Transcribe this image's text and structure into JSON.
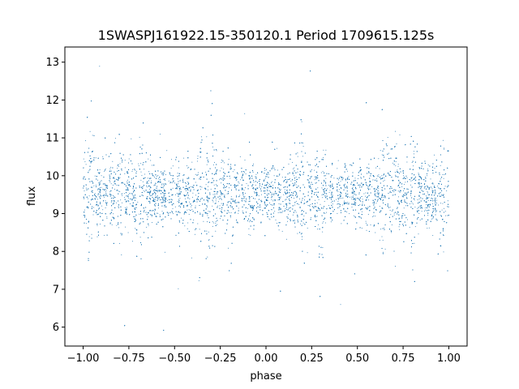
{
  "chart_data": {
    "type": "scatter",
    "title": "1SWASPJ161922.15-350120.1 Period 1709615.125s",
    "xlabel": "phase",
    "ylabel": "flux",
    "xlim": [
      -1.1,
      1.1
    ],
    "ylim": [
      5.5,
      13.4
    ],
    "xticks": [
      -1.0,
      -0.75,
      -0.5,
      -0.25,
      0.0,
      0.25,
      0.5,
      0.75,
      1.0
    ],
    "xtick_labels": [
      "−1.00",
      "−0.75",
      "−0.50",
      "−0.25",
      "0.00",
      "0.25",
      "0.50",
      "0.75",
      "1.00"
    ],
    "yticks": [
      6,
      7,
      8,
      9,
      10,
      11,
      12,
      13
    ],
    "ytick_labels": [
      "6",
      "7",
      "8",
      "9",
      "10",
      "11",
      "12",
      "13"
    ],
    "grid": false,
    "legend": false,
    "marker_color": "#1f77b4",
    "series": [
      {
        "x_range": [
          -1.0,
          1.0
        ],
        "median_flux": 9.5,
        "typical_range": [
          8.5,
          10.5
        ],
        "full_range": [
          5.9,
          13.05
        ],
        "approx_points": 30000,
        "high_variance_phases": [
          -0.97,
          -0.8,
          -0.68,
          -0.35,
          -0.3,
          -0.2,
          0.2,
          0.3,
          0.65,
          0.7,
          0.8,
          0.97
        ]
      }
    ]
  }
}
